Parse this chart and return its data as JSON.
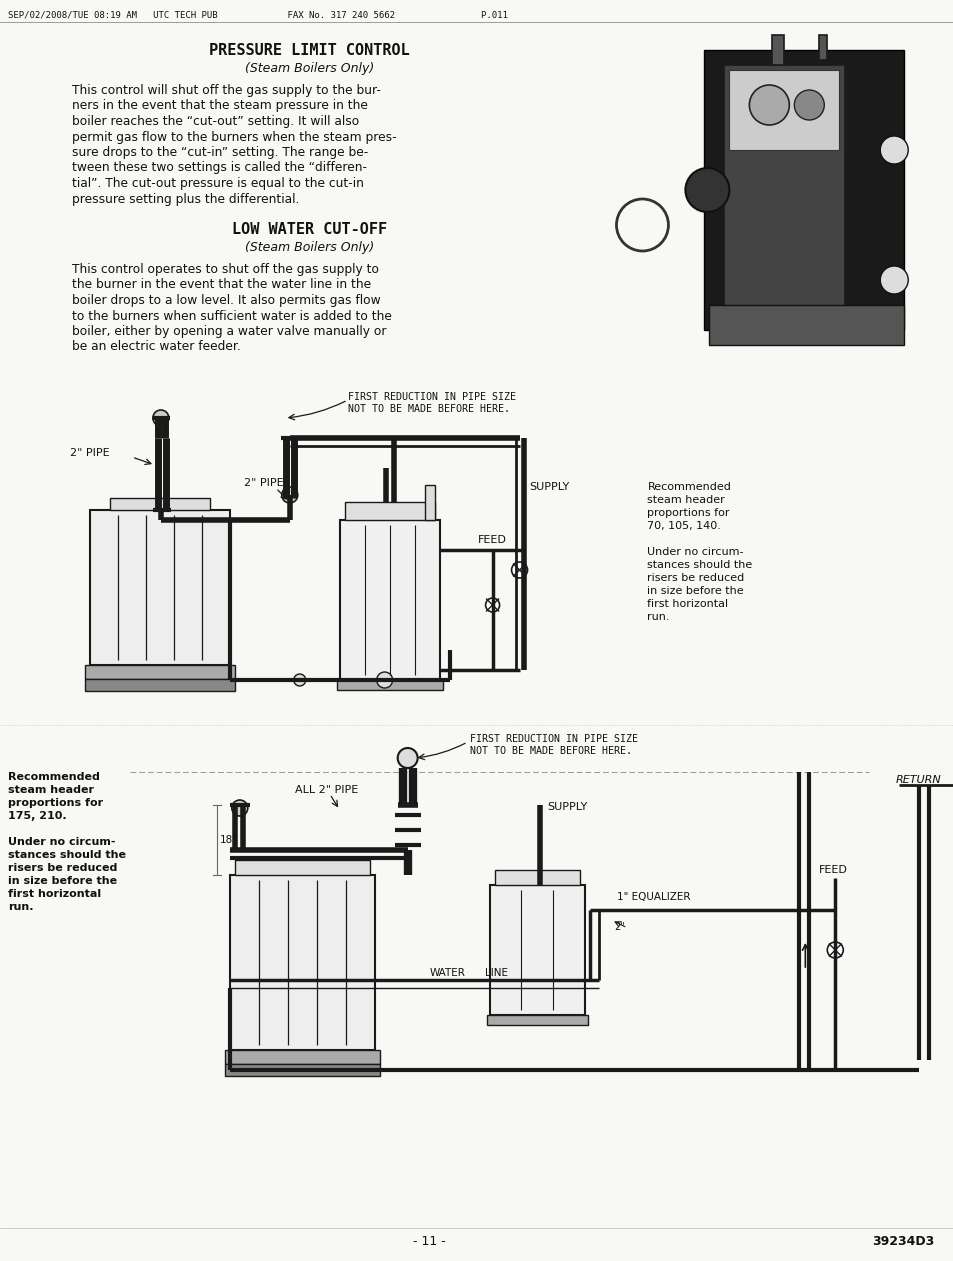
{
  "bg": "#f8f8f5",
  "tc": "#111111",
  "lc": "#1a1a1a",
  "header": "SEP/02/2008/TUE 08:19 AM   UTC TECH PUB             FAX No. 317 240 5662                P.011",
  "title1": "PRESSURE LIMIT CONTROL",
  "subtitle1": "(Steam Boilers Only)",
  "body1": [
    "This control will shut off the gas supply to the bur-",
    "ners in the event that the steam pressure in the",
    "boiler reaches the “cut-out” setting. It will also",
    "permit gas flow to the burners when the steam pres-",
    "sure drops to the “cut-in” setting. The range be-",
    "tween these two settings is called the “differen-",
    "tial”. The cut-out pressure is equal to the cut-in",
    "pressure setting plus the differential."
  ],
  "title2": "LOW WATER CUT-OFF",
  "subtitle2": "(Steam Boilers Only)",
  "body2": [
    "This control operates to shut off the gas supply to",
    "the burner in the event that the water line in the",
    "boiler drops to a low level. It also permits gas flow",
    "to the burners when sufficient water is added to the",
    "boiler, either by opening a water valve manually or",
    "be an electric water feeder."
  ],
  "d1_note": [
    "Recommended",
    "steam header",
    "proportions for",
    "70, 105, 140.",
    "",
    "Under no circum-",
    "stances should the",
    "risers be reduced",
    "in size before the",
    "first horizontal",
    "run."
  ],
  "d2_note": [
    "Recommended",
    "steam header",
    "proportions for",
    "175, 210.",
    "",
    "Under no circum-",
    "stances should the",
    "risers be reduced",
    "in size before the",
    "first horizontal",
    "run."
  ],
  "footer_page": "- 11 -",
  "footer_code": "39234D3"
}
